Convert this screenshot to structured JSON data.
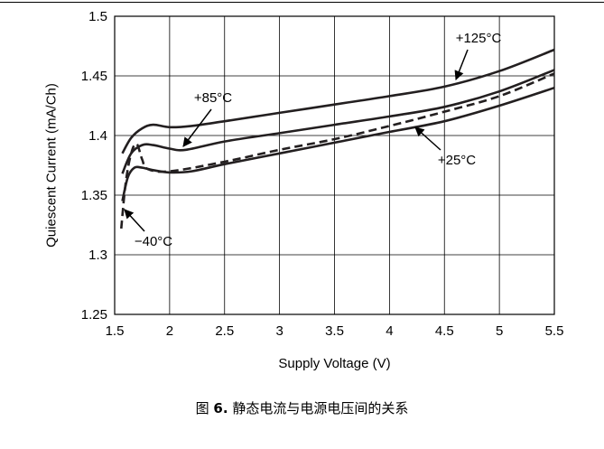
{
  "chart_data": {
    "type": "line",
    "xlabel": "Supply Voltage (V)",
    "ylabel": "Quiescent Current (mA/Ch)",
    "xlim": [
      1.5,
      5.5
    ],
    "ylim": [
      1.25,
      1.5
    ],
    "xticks": [
      "1.5",
      "2",
      "2.5",
      "3",
      "3.5",
      "4",
      "4.5",
      "5",
      "5.5"
    ],
    "yticks": [
      "1.25",
      "1.3",
      "1.35",
      "1.4",
      "1.45",
      "1.5"
    ],
    "grid": true,
    "series": [
      {
        "name": "+125°C",
        "style": "solid",
        "x": [
          1.57,
          1.65,
          1.75,
          1.85,
          2.0,
          2.2,
          2.5,
          3.0,
          3.5,
          4.0,
          4.5,
          5.0,
          5.5
        ],
        "y": [
          1.385,
          1.398,
          1.406,
          1.409,
          1.407,
          1.408,
          1.412,
          1.419,
          1.426,
          1.433,
          1.441,
          1.454,
          1.472
        ]
      },
      {
        "name": "+85°C",
        "style": "solid",
        "x": [
          1.57,
          1.65,
          1.75,
          1.85,
          2.0,
          2.15,
          2.5,
          3.0,
          3.5,
          4.0,
          4.5,
          5.0,
          5.5
        ],
        "y": [
          1.368,
          1.385,
          1.392,
          1.392,
          1.389,
          1.388,
          1.395,
          1.402,
          1.409,
          1.416,
          1.424,
          1.437,
          1.455
        ]
      },
      {
        "name": "+25°C",
        "style": "solid",
        "x": [
          1.57,
          1.62,
          1.68,
          1.75,
          1.85,
          2.0,
          2.2,
          2.5,
          3.0,
          3.5,
          4.0,
          4.5,
          5.0,
          5.5
        ],
        "y": [
          1.345,
          1.365,
          1.373,
          1.373,
          1.371,
          1.369,
          1.37,
          1.376,
          1.385,
          1.394,
          1.403,
          1.412,
          1.425,
          1.44
        ]
      },
      {
        "name": "−40°C",
        "style": "dashed",
        "x": [
          1.56,
          1.6,
          1.65,
          1.7,
          1.75,
          1.8,
          2.0,
          2.5,
          3.0,
          3.5,
          4.0,
          4.5,
          5.0,
          5.5
        ],
        "y": [
          1.322,
          1.36,
          1.385,
          1.393,
          1.38,
          1.372,
          1.37,
          1.378,
          1.388,
          1.397,
          1.408,
          1.42,
          1.433,
          1.452
        ]
      }
    ],
    "annotations": [
      {
        "text": "+125°C",
        "series": "+125°C"
      },
      {
        "text": "+85°C",
        "series": "+85°C"
      },
      {
        "text": "+25°C",
        "series": "+25°C"
      },
      {
        "text": "−40°C",
        "series": "−40°C"
      }
    ]
  },
  "caption": {
    "prefix": "图",
    "number": "6.",
    "text": "静态电流与电源电压间的关系"
  }
}
